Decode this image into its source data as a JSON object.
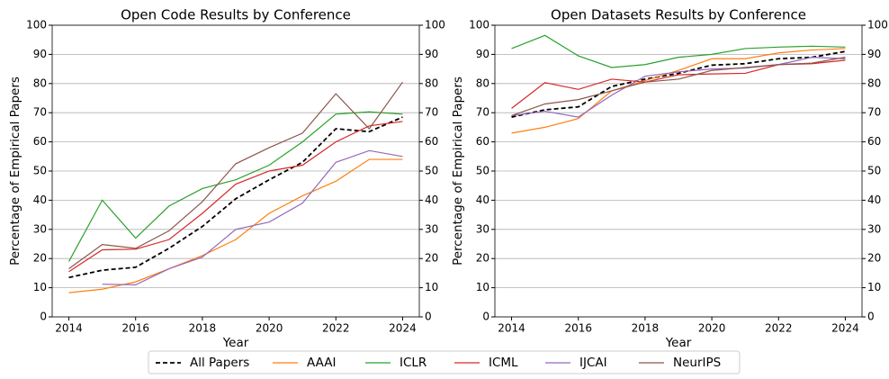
{
  "chart_data": [
    {
      "type": "line",
      "title": "Open Code Results by Conference",
      "xlabel": "Year",
      "ylabel": "Percentage of Empirical Papers",
      "x": [
        2014,
        2015,
        2016,
        2017,
        2018,
        2019,
        2020,
        2021,
        2022,
        2023,
        2024
      ],
      "xlim": [
        2013.5,
        2024.5
      ],
      "xticks": [
        2014,
        2016,
        2018,
        2020,
        2022,
        2024
      ],
      "ylim": [
        0,
        100
      ],
      "yticks": [
        0,
        10,
        20,
        30,
        40,
        50,
        60,
        70,
        80,
        90,
        100
      ],
      "grid": true,
      "mirror_y_ticks": true,
      "series": [
        {
          "name": "All Papers",
          "color": "#000000",
          "linestyle": "dashed",
          "values": [
            13.5,
            16,
            17,
            23.5,
            31,
            40.5,
            47,
            53,
            64.5,
            63.5,
            68.5
          ]
        },
        {
          "name": "AAAI",
          "color": "#ff7f0e",
          "values": [
            8.3,
            9.5,
            12,
            16.5,
            21,
            26.5,
            35.5,
            41.5,
            46.5,
            54,
            54
          ]
        },
        {
          "name": "ICLR",
          "color": "#2ca02c",
          "values": [
            19,
            40,
            27,
            38,
            44,
            47,
            52,
            60,
            69.5,
            70.3,
            69.5
          ]
        },
        {
          "name": "ICML",
          "color": "#d62728",
          "values": [
            15.5,
            23,
            23.2,
            26.5,
            35.5,
            45.5,
            50,
            52,
            60,
            65.5,
            67
          ]
        },
        {
          "name": "IJCAI",
          "color": "#9467bd",
          "values": [
            null,
            11.2,
            11,
            16.5,
            20.5,
            30,
            32.5,
            39,
            53,
            57,
            55
          ]
        },
        {
          "name": "NeurIPS",
          "color": "#8c564b",
          "values": [
            16.5,
            24.8,
            23.5,
            29.5,
            39.5,
            52.5,
            58,
            63,
            76.5,
            64.5,
            80.5
          ]
        }
      ]
    },
    {
      "type": "line",
      "title": "Open Datasets Results by Conference",
      "xlabel": "Year",
      "ylabel": "Percentage of Empirical Papers",
      "x": [
        2014,
        2015,
        2016,
        2017,
        2018,
        2019,
        2020,
        2021,
        2022,
        2023,
        2024
      ],
      "xlim": [
        2013.5,
        2024.5
      ],
      "xticks": [
        2014,
        2016,
        2018,
        2020,
        2022,
        2024
      ],
      "ylim": [
        0,
        100
      ],
      "yticks": [
        0,
        10,
        20,
        30,
        40,
        50,
        60,
        70,
        80,
        90,
        100
      ],
      "grid": true,
      "mirror_y_ticks": true,
      "series": [
        {
          "name": "All Papers",
          "color": "#000000",
          "linestyle": "dashed",
          "values": [
            68.5,
            71,
            72,
            79,
            81.5,
            83.5,
            86.3,
            86.8,
            88.5,
            89,
            91
          ]
        },
        {
          "name": "AAAI",
          "color": "#ff7f0e",
          "values": [
            63,
            65,
            68,
            77.5,
            81,
            84.5,
            88.5,
            88.5,
            90.5,
            91.5,
            92
          ]
        },
        {
          "name": "ICLR",
          "color": "#2ca02c",
          "values": [
            92,
            96.5,
            89.5,
            85.5,
            86.5,
            89,
            90,
            92,
            92.5,
            92.8,
            92.5
          ]
        },
        {
          "name": "ICML",
          "color": "#d62728",
          "values": [
            71.5,
            80.3,
            78,
            81.5,
            80.5,
            83,
            83.3,
            83.5,
            86.5,
            86.8,
            88
          ]
        },
        {
          "name": "IJCAI",
          "color": "#9467bd",
          "values": [
            69,
            70.5,
            68.5,
            76,
            82.5,
            84,
            85,
            85.3,
            86.5,
            89,
            88.5
          ]
        },
        {
          "name": "NeurIPS",
          "color": "#8c564b",
          "values": [
            69,
            73,
            74.5,
            77.5,
            80.5,
            81.5,
            84.5,
            85.5,
            86.5,
            87,
            89
          ]
        }
      ]
    }
  ]
}
